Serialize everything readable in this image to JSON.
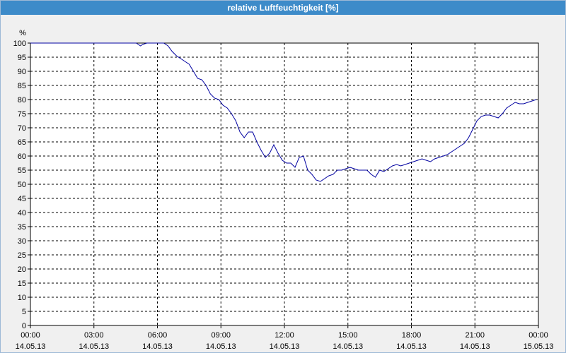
{
  "window": {
    "title": "relative Luftfeuchtigkeit [%]"
  },
  "colors": {
    "titlebar": "#3d8bc9",
    "line": "#0000a0",
    "grid": "#000000",
    "background": "#f0f0f0"
  },
  "chart_data": {
    "type": "line",
    "title": "relative Luftfeuchtigkeit [%]",
    "ylabel": "%",
    "xlabel": "",
    "ylim": [
      0,
      100
    ],
    "y_ticks": [
      0,
      5,
      10,
      15,
      20,
      25,
      30,
      35,
      40,
      45,
      50,
      55,
      60,
      65,
      70,
      75,
      80,
      85,
      90,
      95,
      100
    ],
    "xlim_hours": [
      0,
      24
    ],
    "x_ticks": [
      {
        "hour": 0,
        "time": "00:00",
        "date": "14.05.13"
      },
      {
        "hour": 3,
        "time": "03:00",
        "date": "14.05.13"
      },
      {
        "hour": 6,
        "time": "06:00",
        "date": "14.05.13"
      },
      {
        "hour": 9,
        "time": "09:00",
        "date": "14.05.13"
      },
      {
        "hour": 12,
        "time": "12:00",
        "date": "14.05.13"
      },
      {
        "hour": 15,
        "time": "15:00",
        "date": "14.05.13"
      },
      {
        "hour": 18,
        "time": "18:00",
        "date": "14.05.13"
      },
      {
        "hour": 21,
        "time": "21:00",
        "date": "14.05.13"
      },
      {
        "hour": 24,
        "time": "00:00",
        "date": "15.05.13"
      }
    ],
    "grid": true,
    "series": [
      {
        "values_x_hours": [
          0,
          1,
          2,
          3,
          4,
          5.0,
          5.1,
          5.2,
          5.3,
          5.5,
          6.0,
          6.3,
          6.5,
          6.7,
          6.9,
          7.1,
          7.3,
          7.5,
          7.7,
          7.9,
          8.1,
          8.3,
          8.5,
          8.7,
          8.9,
          9.1,
          9.3,
          9.5,
          9.7,
          9.9,
          10.1,
          10.3,
          10.5,
          10.7,
          10.9,
          11.1,
          11.3,
          11.5,
          11.7,
          11.9,
          12.1,
          12.3,
          12.5,
          12.7,
          12.9,
          13.1,
          13.3,
          13.5,
          13.7,
          13.9,
          14.1,
          14.3,
          14.5,
          14.7,
          14.9,
          15.1,
          15.3,
          15.5,
          15.7,
          15.9,
          16.1,
          16.3,
          16.5,
          16.7,
          16.9,
          17.1,
          17.3,
          17.5,
          17.7,
          17.9,
          18.1,
          18.3,
          18.5,
          18.7,
          18.9,
          19.1,
          19.3,
          19.5,
          19.7,
          19.9,
          20.1,
          20.3,
          20.5,
          20.7,
          20.9,
          21.1,
          21.3,
          21.5,
          21.7,
          21.9,
          22.1,
          22.3,
          22.5,
          22.7,
          22.9,
          23.1,
          23.3,
          23.5,
          23.7,
          23.9
        ],
        "values": [
          100,
          100,
          100,
          100,
          100,
          100,
          99.5,
          99,
          99.5,
          100,
          100,
          100,
          99,
          97,
          95.5,
          94.5,
          93.5,
          92.5,
          90,
          87.5,
          87,
          85,
          82,
          80.5,
          80,
          78,
          77,
          75,
          72.5,
          68.5,
          66.5,
          68.5,
          68.5,
          65,
          62,
          59.5,
          61,
          64,
          61,
          58.5,
          57.5,
          57.5,
          56,
          59.5,
          60,
          55,
          53.5,
          51.5,
          51,
          52,
          53,
          53.5,
          55,
          55,
          55.5,
          56,
          55.5,
          55,
          55,
          55,
          53.5,
          52.5,
          55,
          54.5,
          55.5,
          56.5,
          57,
          56.5,
          57,
          57.5,
          58,
          58.5,
          59,
          58.5,
          58,
          59,
          59.5,
          60,
          60.5,
          61.5,
          62.5,
          63.5,
          64.5,
          66.5,
          69.5,
          72.5,
          74,
          74.5,
          74.5,
          74,
          73.5,
          75,
          77,
          78,
          79,
          78.5,
          78.5,
          79,
          79.5,
          80
        ]
      }
    ]
  }
}
